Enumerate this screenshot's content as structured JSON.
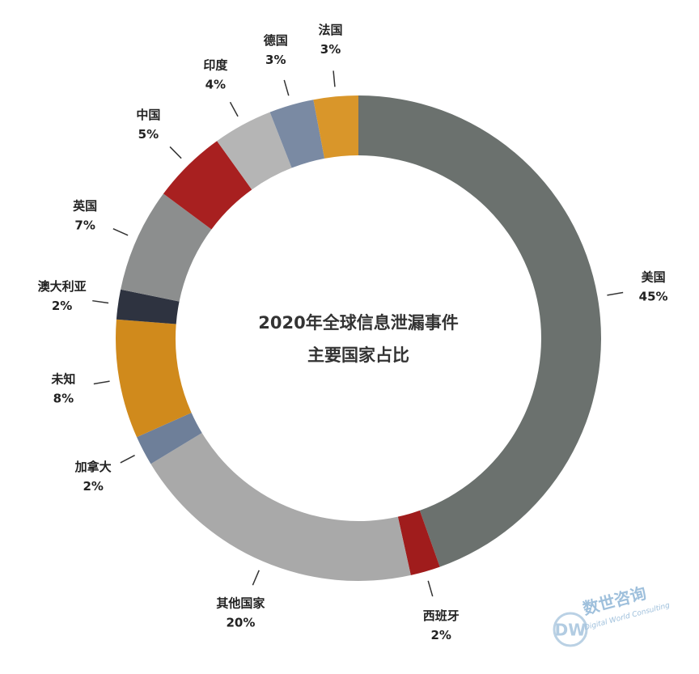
{
  "chart_data": {
    "type": "donut",
    "title": [
      "2020年全球信息泄漏事件",
      "主要国家占比"
    ],
    "categories": [
      "美国",
      "西班牙",
      "其他国家",
      "加拿大",
      "未知",
      "澳大利亚",
      "英国",
      "中国",
      "印度",
      "德国",
      "法国"
    ],
    "values": [
      45,
      2,
      20,
      2,
      8,
      2,
      7,
      5,
      4,
      3,
      3
    ],
    "value_labels": [
      "45%",
      "2%",
      "20%",
      "2%",
      "8%",
      "2%",
      "7%",
      "5%",
      "4%",
      "3%",
      "3%"
    ],
    "colors": [
      "#6b716e",
      "#a01c1c",
      "#a9a9a9",
      "#6e7f99",
      "#d08a1c",
      "#2e3340",
      "#8c8e8e",
      "#a82020",
      "#b5b5b5",
      "#7a8aa3",
      "#d9962a"
    ],
    "watermark": {
      "name": "数世咨询",
      "tagline": "Digital World Consulting"
    }
  }
}
